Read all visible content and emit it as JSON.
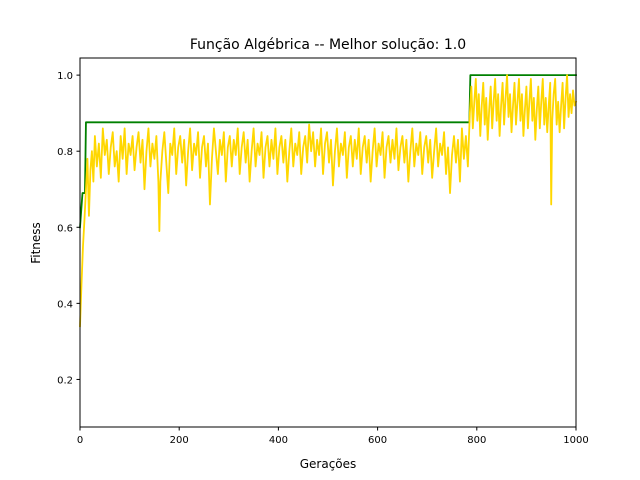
{
  "chart_data": {
    "type": "line",
    "title": "Função Algébrica -- Melhor solução: 1.0",
    "xlabel": "Gerações",
    "ylabel": "Fitness",
    "xlim": [
      0,
      1000
    ],
    "ylim": [
      0.075,
      1.045
    ],
    "xticks": [
      0,
      200,
      400,
      600,
      800,
      1000
    ],
    "xtick_labels": [
      "0",
      "200",
      "400",
      "600",
      "800",
      "1000"
    ],
    "yticks": [
      0.2,
      0.4,
      0.6,
      0.8,
      1.0
    ],
    "ytick_labels": [
      "0.2",
      "0.4",
      "0.6",
      "0.8",
      "1.0"
    ],
    "grid": false,
    "series": [
      {
        "color": "#008000",
        "points": [
          [
            0,
            0.6
          ],
          [
            5,
            0.69
          ],
          [
            10,
            0.69
          ],
          [
            12,
            0.876
          ],
          [
            785,
            0.876
          ],
          [
            787,
            1.0
          ],
          [
            1000,
            1.0
          ]
        ]
      },
      {
        "color": "#FFD700",
        "points": [
          [
            0,
            0.34
          ],
          [
            3,
            0.45
          ],
          [
            6,
            0.55
          ],
          [
            9,
            0.62
          ],
          [
            12,
            0.7
          ],
          [
            15,
            0.78
          ],
          [
            18,
            0.63
          ],
          [
            21,
            0.75
          ],
          [
            24,
            0.8
          ],
          [
            27,
            0.72
          ],
          [
            30,
            0.84
          ],
          [
            34,
            0.76
          ],
          [
            38,
            0.82
          ],
          [
            42,
            0.73
          ],
          [
            46,
            0.86
          ],
          [
            50,
            0.79
          ],
          [
            54,
            0.83
          ],
          [
            58,
            0.74
          ],
          [
            62,
            0.81
          ],
          [
            66,
            0.85
          ],
          [
            70,
            0.76
          ],
          [
            74,
            0.8
          ],
          [
            78,
            0.72
          ],
          [
            82,
            0.84
          ],
          [
            86,
            0.78
          ],
          [
            90,
            0.86
          ],
          [
            94,
            0.74
          ],
          [
            98,
            0.82
          ],
          [
            102,
            0.79
          ],
          [
            106,
            0.84
          ],
          [
            110,
            0.75
          ],
          [
            114,
            0.81
          ],
          [
            118,
            0.85
          ],
          [
            122,
            0.77
          ],
          [
            126,
            0.83
          ],
          [
            130,
            0.7
          ],
          [
            134,
            0.8
          ],
          [
            138,
            0.86
          ],
          [
            142,
            0.76
          ],
          [
            146,
            0.82
          ],
          [
            150,
            0.78
          ],
          [
            154,
            0.84
          ],
          [
            158,
            0.72
          ],
          [
            160,
            0.59
          ],
          [
            162,
            0.72
          ],
          [
            166,
            0.8
          ],
          [
            170,
            0.85
          ],
          [
            174,
            0.77
          ],
          [
            178,
            0.69
          ],
          [
            182,
            0.82
          ],
          [
            186,
            0.79
          ],
          [
            190,
            0.86
          ],
          [
            194,
            0.74
          ],
          [
            198,
            0.81
          ],
          [
            202,
            0.84
          ],
          [
            206,
            0.77
          ],
          [
            210,
            0.83
          ],
          [
            214,
            0.71
          ],
          [
            218,
            0.8
          ],
          [
            222,
            0.86
          ],
          [
            226,
            0.75
          ],
          [
            230,
            0.82
          ],
          [
            234,
            0.79
          ],
          [
            238,
            0.85
          ],
          [
            242,
            0.73
          ],
          [
            246,
            0.81
          ],
          [
            250,
            0.84
          ],
          [
            254,
            0.76
          ],
          [
            258,
            0.82
          ],
          [
            262,
            0.66
          ],
          [
            266,
            0.78
          ],
          [
            270,
            0.86
          ],
          [
            274,
            0.8
          ],
          [
            278,
            0.74
          ],
          [
            282,
            0.83
          ],
          [
            286,
            0.79
          ],
          [
            290,
            0.85
          ],
          [
            294,
            0.72
          ],
          [
            298,
            0.81
          ],
          [
            302,
            0.84
          ],
          [
            306,
            0.76
          ],
          [
            310,
            0.83
          ],
          [
            314,
            0.79
          ],
          [
            318,
            0.86
          ],
          [
            322,
            0.74
          ],
          [
            326,
            0.81
          ],
          [
            330,
            0.85
          ],
          [
            334,
            0.77
          ],
          [
            338,
            0.83
          ],
          [
            342,
            0.72
          ],
          [
            346,
            0.8
          ],
          [
            350,
            0.86
          ],
          [
            354,
            0.76
          ],
          [
            358,
            0.82
          ],
          [
            362,
            0.79
          ],
          [
            366,
            0.85
          ],
          [
            370,
            0.73
          ],
          [
            374,
            0.81
          ],
          [
            378,
            0.84
          ],
          [
            382,
            0.76
          ],
          [
            386,
            0.83
          ],
          [
            390,
            0.78
          ],
          [
            394,
            0.86
          ],
          [
            398,
            0.74
          ],
          [
            402,
            0.81
          ],
          [
            406,
            0.84
          ],
          [
            410,
            0.77
          ],
          [
            414,
            0.83
          ],
          [
            418,
            0.72
          ],
          [
            422,
            0.8
          ],
          [
            426,
            0.86
          ],
          [
            430,
            0.76
          ],
          [
            434,
            0.82
          ],
          [
            438,
            0.79
          ],
          [
            442,
            0.85
          ],
          [
            446,
            0.74
          ],
          [
            450,
            0.81
          ],
          [
            454,
            0.84
          ],
          [
            458,
            0.77
          ],
          [
            462,
            0.87
          ],
          [
            466,
            0.8
          ],
          [
            470,
            0.85
          ],
          [
            474,
            0.76
          ],
          [
            478,
            0.83
          ],
          [
            482,
            0.79
          ],
          [
            486,
            0.86
          ],
          [
            490,
            0.74
          ],
          [
            494,
            0.82
          ],
          [
            498,
            0.85
          ],
          [
            502,
            0.77
          ],
          [
            506,
            0.83
          ],
          [
            510,
            0.71
          ],
          [
            514,
            0.8
          ],
          [
            518,
            0.86
          ],
          [
            522,
            0.76
          ],
          [
            526,
            0.82
          ],
          [
            530,
            0.79
          ],
          [
            534,
            0.85
          ],
          [
            538,
            0.73
          ],
          [
            542,
            0.81
          ],
          [
            546,
            0.84
          ],
          [
            550,
            0.76
          ],
          [
            554,
            0.83
          ],
          [
            558,
            0.78
          ],
          [
            562,
            0.86
          ],
          [
            566,
            0.74
          ],
          [
            570,
            0.81
          ],
          [
            574,
            0.84
          ],
          [
            578,
            0.77
          ],
          [
            582,
            0.83
          ],
          [
            586,
            0.72
          ],
          [
            590,
            0.8
          ],
          [
            594,
            0.86
          ],
          [
            598,
            0.76
          ],
          [
            602,
            0.82
          ],
          [
            606,
            0.79
          ],
          [
            610,
            0.85
          ],
          [
            614,
            0.73
          ],
          [
            618,
            0.81
          ],
          [
            622,
            0.84
          ],
          [
            626,
            0.77
          ],
          [
            630,
            0.83
          ],
          [
            634,
            0.78
          ],
          [
            638,
            0.86
          ],
          [
            642,
            0.75
          ],
          [
            646,
            0.81
          ],
          [
            650,
            0.84
          ],
          [
            654,
            0.77
          ],
          [
            658,
            0.83
          ],
          [
            662,
            0.72
          ],
          [
            666,
            0.8
          ],
          [
            670,
            0.86
          ],
          [
            674,
            0.76
          ],
          [
            678,
            0.82
          ],
          [
            682,
            0.79
          ],
          [
            686,
            0.85
          ],
          [
            690,
            0.74
          ],
          [
            694,
            0.81
          ],
          [
            698,
            0.84
          ],
          [
            702,
            0.77
          ],
          [
            706,
            0.83
          ],
          [
            710,
            0.73
          ],
          [
            714,
            0.8
          ],
          [
            718,
            0.86
          ],
          [
            722,
            0.76
          ],
          [
            726,
            0.82
          ],
          [
            730,
            0.79
          ],
          [
            734,
            0.85
          ],
          [
            738,
            0.74
          ],
          [
            742,
            0.81
          ],
          [
            746,
            0.69
          ],
          [
            750,
            0.79
          ],
          [
            754,
            0.84
          ],
          [
            758,
            0.77
          ],
          [
            762,
            0.83
          ],
          [
            766,
            0.72
          ],
          [
            770,
            0.86
          ],
          [
            774,
            0.78
          ],
          [
            778,
            0.84
          ],
          [
            782,
            0.76
          ],
          [
            786,
            0.9
          ],
          [
            789,
            0.97
          ],
          [
            792,
            0.86
          ],
          [
            795,
            0.93
          ],
          [
            798,
            0.99
          ],
          [
            801,
            0.88
          ],
          [
            804,
            0.95
          ],
          [
            807,
            0.84
          ],
          [
            810,
            0.92
          ],
          [
            813,
            0.98
          ],
          [
            816,
            0.87
          ],
          [
            819,
            0.94
          ],
          [
            822,
            0.83
          ],
          [
            825,
            0.91
          ],
          [
            828,
            0.97
          ],
          [
            831,
            0.86
          ],
          [
            834,
            0.93
          ],
          [
            837,
            0.99
          ],
          [
            840,
            0.88
          ],
          [
            843,
            0.95
          ],
          [
            846,
            0.84
          ],
          [
            849,
            0.92
          ],
          [
            852,
            0.98
          ],
          [
            855,
            0.87
          ],
          [
            858,
            0.94
          ],
          [
            861,
            1.0
          ],
          [
            864,
            0.89
          ],
          [
            867,
            0.95
          ],
          [
            870,
            0.85
          ],
          [
            873,
            0.92
          ],
          [
            876,
            0.98
          ],
          [
            879,
            0.87
          ],
          [
            882,
            0.93
          ],
          [
            885,
            0.99
          ],
          [
            888,
            0.88
          ],
          [
            891,
            0.95
          ],
          [
            894,
            0.84
          ],
          [
            897,
            0.91
          ],
          [
            900,
            0.97
          ],
          [
            903,
            0.86
          ],
          [
            906,
            0.93
          ],
          [
            909,
            0.99
          ],
          [
            912,
            0.88
          ],
          [
            915,
            0.94
          ],
          [
            918,
            0.83
          ],
          [
            921,
            0.91
          ],
          [
            924,
            0.97
          ],
          [
            927,
            0.86
          ],
          [
            930,
            0.93
          ],
          [
            933,
            0.99
          ],
          [
            936,
            0.87
          ],
          [
            939,
            0.94
          ],
          [
            942,
            0.85
          ],
          [
            945,
            0.92
          ],
          [
            948,
            0.98
          ],
          [
            950,
            0.66
          ],
          [
            952,
            0.88
          ],
          [
            955,
            0.95
          ],
          [
            958,
            0.99
          ],
          [
            961,
            0.87
          ],
          [
            964,
            0.93
          ],
          [
            967,
            0.85
          ],
          [
            970,
            0.92
          ],
          [
            973,
            0.98
          ],
          [
            976,
            0.86
          ],
          [
            979,
            0.94
          ],
          [
            982,
            1.0
          ],
          [
            985,
            0.89
          ],
          [
            988,
            0.95
          ],
          [
            991,
            0.9
          ],
          [
            994,
            0.96
          ],
          [
            997,
            0.92
          ],
          [
            1000,
            0.93
          ]
        ]
      }
    ]
  }
}
